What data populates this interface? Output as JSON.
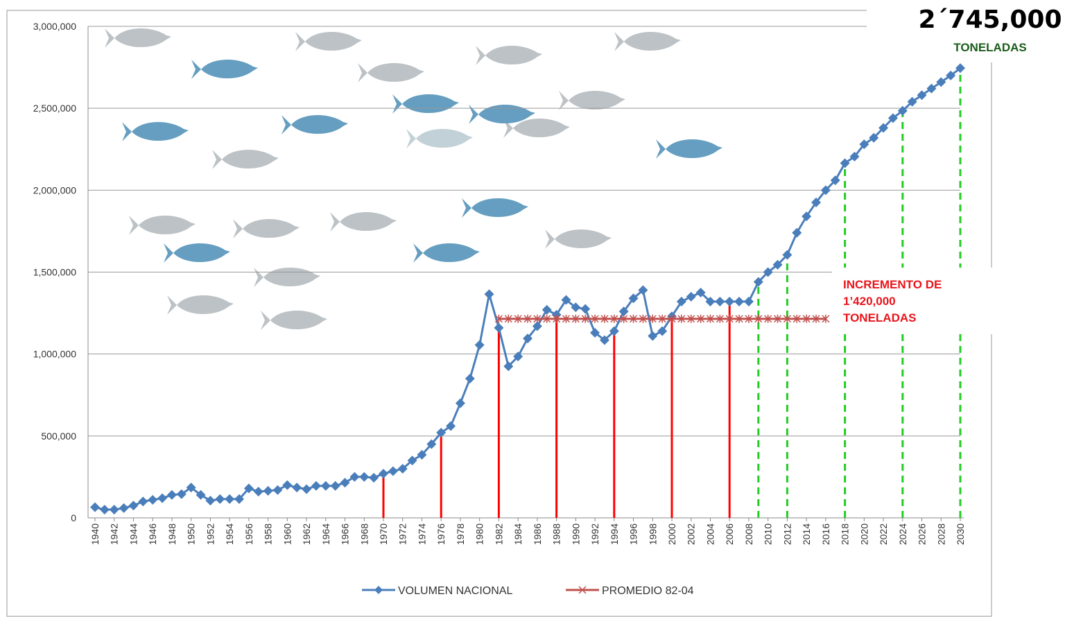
{
  "chart_data": {
    "type": "line",
    "x": [
      1940,
      1941,
      1942,
      1943,
      1944,
      1945,
      1946,
      1947,
      1948,
      1949,
      1950,
      1951,
      1952,
      1953,
      1954,
      1955,
      1956,
      1957,
      1958,
      1959,
      1960,
      1961,
      1962,
      1963,
      1964,
      1965,
      1966,
      1967,
      1968,
      1969,
      1970,
      1971,
      1972,
      1973,
      1974,
      1975,
      1976,
      1977,
      1978,
      1979,
      1980,
      1981,
      1982,
      1983,
      1984,
      1985,
      1986,
      1987,
      1988,
      1989,
      1990,
      1991,
      1992,
      1993,
      1994,
      1995,
      1996,
      1997,
      1998,
      1999,
      2000,
      2001,
      2002,
      2003,
      2004,
      2005,
      2006,
      2007,
      2008,
      2009,
      2010,
      2011,
      2012,
      2013,
      2014,
      2015,
      2016,
      2017,
      2018,
      2019,
      2020,
      2021,
      2022,
      2023,
      2024,
      2025,
      2026,
      2027,
      2028,
      2029,
      2030
    ],
    "series": [
      {
        "name": "VOLUMEN NACIONAL",
        "color": "#4a7ebb",
        "marker": "diamond",
        "values": [
          65000,
          50000,
          50000,
          60000,
          75000,
          100000,
          110000,
          120000,
          140000,
          145000,
          185000,
          140000,
          105000,
          115000,
          115000,
          115000,
          180000,
          160000,
          165000,
          170000,
          200000,
          185000,
          175000,
          195000,
          195000,
          195000,
          215000,
          250000,
          250000,
          245000,
          270000,
          285000,
          300000,
          350000,
          385000,
          450000,
          520000,
          560000,
          700000,
          850000,
          1055000,
          1365000,
          1160000,
          925000,
          985000,
          1095000,
          1170000,
          1270000,
          1240000,
          1330000,
          1285000,
          1275000,
          1130000,
          1085000,
          1140000,
          1260000,
          1340000,
          1390000,
          1110000,
          1140000,
          1230000,
          1320000,
          1350000,
          1375000,
          1320000,
          1320000,
          1320000,
          1320000,
          1320000,
          1440000,
          1500000,
          1545000,
          1605000,
          1740000,
          1840000,
          1925000,
          2000000,
          2060000,
          2165000,
          2205000,
          2280000,
          2320000,
          2380000,
          2440000,
          2485000,
          2540000,
          2580000,
          2620000,
          2660000,
          2700000,
          2745000
        ]
      },
      {
        "name": "PROMEDIO 82-04",
        "color": "#c0504d",
        "marker": "star",
        "values": [
          null,
          null,
          null,
          null,
          null,
          null,
          null,
          null,
          null,
          null,
          null,
          null,
          null,
          null,
          null,
          null,
          null,
          null,
          null,
          null,
          null,
          null,
          null,
          null,
          null,
          null,
          null,
          null,
          null,
          null,
          null,
          null,
          null,
          null,
          null,
          null,
          null,
          null,
          null,
          null,
          null,
          null,
          1215000,
          1215000,
          1215000,
          1215000,
          1215000,
          1215000,
          1215000,
          1215000,
          1215000,
          1215000,
          1215000,
          1215000,
          1215000,
          1215000,
          1215000,
          1215000,
          1215000,
          1215000,
          1215000,
          1215000,
          1215000,
          1215000,
          1215000,
          1215000,
          1215000,
          1215000,
          1215000,
          1215000,
          1215000,
          1215000,
          1215000,
          1215000,
          1215000,
          1215000,
          1215000,
          null,
          null,
          null,
          null,
          null,
          null,
          null,
          null,
          null,
          null,
          null,
          null,
          null,
          null
        ]
      }
    ],
    "reference_lines": [
      {
        "color": "#ff0000",
        "style": "solid",
        "x": [
          1970,
          1976,
          1982,
          1988,
          1994,
          2000,
          2006
        ]
      },
      {
        "color": "#22cc22",
        "style": "dashed",
        "x": [
          2009,
          2012,
          2018,
          2024,
          2030
        ]
      }
    ],
    "xlim": [
      1940,
      2030
    ],
    "xticks": [
      1940,
      1942,
      1944,
      1946,
      1948,
      1950,
      1952,
      1954,
      1956,
      1958,
      1960,
      1962,
      1964,
      1966,
      1968,
      1970,
      1972,
      1974,
      1976,
      1978,
      1980,
      1982,
      1984,
      1986,
      1988,
      1990,
      1992,
      1994,
      1996,
      1998,
      2000,
      2002,
      2004,
      2006,
      2008,
      2010,
      2012,
      2014,
      2016,
      2018,
      2020,
      2022,
      2024,
      2026,
      2028,
      2030
    ],
    "ylim": [
      0,
      3000000
    ],
    "yticks": [
      0,
      {
        "value": 500000,
        "label": "500,000"
      },
      {
        "value": 1000000,
        "label": "1,000,000"
      },
      {
        "value": 1500000,
        "label": "1,500,000"
      },
      {
        "value": 2000000,
        "label": "2,000,000"
      },
      {
        "value": 2500000,
        "label": "2,500,000"
      },
      {
        "value": 3000000,
        "label": "3,000,000"
      }
    ],
    "grid": true,
    "legend": "bottom",
    "annotations": [
      {
        "lines": [
          "2´745,000",
          "TONELADAS"
        ],
        "color": "#000000",
        "color2": "#1a5c1a"
      },
      {
        "lines": [
          "INCREMENTO DE",
          "1’420,000",
          "TONELADAS"
        ],
        "color": "#e8141b"
      }
    ]
  }
}
